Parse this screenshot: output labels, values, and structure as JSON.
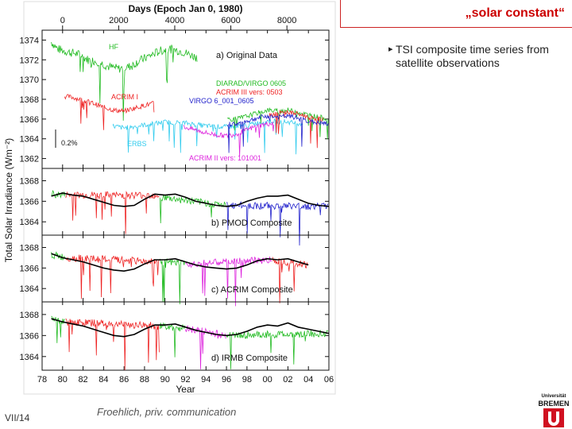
{
  "slide": {
    "title": "„solar constant“",
    "bullet": "TSI composite time series from satellite observations",
    "bullet_icon": "bullet-mark-icon",
    "slide_number": "VII/14",
    "credit": "Froehlich, priv. communication",
    "logo_top_text": "Universität",
    "logo_bottom_text": "BREMEN",
    "logo_color": "#d01020"
  },
  "chart_data": {
    "type": "line",
    "xlabel": "Year",
    "ylabel": "Total Solar Irradiance (Wm⁻²)",
    "top_axis_label": "Days (Epoch Jan 0, 1980)",
    "top_ticks": [
      "0",
      "2000",
      "4000",
      "6000",
      "8000"
    ],
    "top_tick_values": [
      0,
      2000,
      4000,
      6000,
      8000
    ],
    "xlim": [
      1978,
      2006
    ],
    "x_ticks": [
      "78",
      "80",
      "82",
      "84",
      "86",
      "88",
      "90",
      "92",
      "94",
      "96",
      "98",
      "00",
      "02",
      "04",
      "06"
    ],
    "x_tick_values": [
      1978,
      1980,
      1982,
      1984,
      1986,
      1988,
      1990,
      1992,
      1994,
      1996,
      1998,
      2000,
      2002,
      2004,
      2006
    ],
    "panels": [
      {
        "label": "a) Original Data",
        "ylim": [
          1361,
          1375
        ],
        "y_ticks": [
          "1374",
          "1372",
          "1370",
          "1368",
          "1366",
          "1364",
          "1362"
        ],
        "y_tick_values": [
          1374,
          1372,
          1370,
          1368,
          1366,
          1364,
          1362
        ],
        "note": "0.2%",
        "series": [
          {
            "name": "HF",
            "color": "#22bb22",
            "x": [
              1978.9,
              1979.5,
              1980.5,
              1981.5,
              1982.5,
              1983.5,
              1984.5,
              1985.5,
              1986.5,
              1987.5,
              1988.5,
              1989.5,
              1990.5,
              1991.5,
              1992.5,
              1993.2
            ],
            "y": [
              1373.8,
              1373.1,
              1372.8,
              1372.6,
              1372.0,
              1371.8,
              1371.3,
              1371.1,
              1371.3,
              1371.9,
              1372.4,
              1372.9,
              1373.1,
              1372.9,
              1372.5,
              1372.2
            ]
          },
          {
            "name": "ACRIM I",
            "color": "#ee2222",
            "x": [
              1980.2,
              1981.0,
              1982.0,
              1983.0,
              1984.0,
              1985.0,
              1986.0,
              1987.0,
              1988.0,
              1989.0
            ],
            "y": [
              1368.3,
              1368.2,
              1367.9,
              1367.6,
              1367.2,
              1366.9,
              1366.8,
              1367.1,
              1367.4,
              1367.6
            ]
          },
          {
            "name": "ERBS",
            "color": "#33ccee",
            "x": [
              1984.9,
              1986.0,
              1988.0,
              1990.0,
              1992.0,
              1994.0,
              1996.0,
              1998.0,
              2000.0,
              2002.0,
              2003.5
            ],
            "y": [
              1365.3,
              1365.1,
              1365.4,
              1365.7,
              1365.6,
              1365.3,
              1365.2,
              1365.4,
              1365.8,
              1365.7,
              1365.5
            ]
          },
          {
            "name": "ACRIM II vers: 101001",
            "color": "#dd22dd",
            "x": [
              1991.8,
              1993.0,
              1994.0,
              1995.0,
              1996.0,
              1997.0,
              1998.0,
              1999.0,
              2000.0,
              2000.7
            ],
            "y": [
              1365.2,
              1364.9,
              1364.6,
              1364.4,
              1364.3,
              1364.5,
              1364.9,
              1365.3,
              1365.5,
              1365.6
            ]
          },
          {
            "name": "DIARAD/VIRGO 0605",
            "color": "#22bb22",
            "x": [
              1996.1,
              1997.0,
              1998.0,
              1999.0,
              2000.0,
              2001.0,
              2002.0,
              2003.0,
              2004.0,
              2005.0,
              2006.0
            ],
            "y": [
              1366.0,
              1366.0,
              1366.3,
              1366.6,
              1366.9,
              1366.8,
              1366.9,
              1366.7,
              1366.4,
              1366.2,
              1366.0
            ]
          },
          {
            "name": "ACRIM III vers: 0503",
            "color": "#ee2222",
            "x": [
              2000.1,
              2001.0,
              2002.0,
              2003.0,
              2004.0,
              2005.0,
              2005.5
            ],
            "y": [
              1366.4,
              1366.6,
              1366.7,
              1366.5,
              1366.2,
              1366.0,
              1365.9
            ]
          },
          {
            "name": "VIRGO 6_001_0605",
            "color": "#2222cc",
            "x": [
              1996.1,
              1997.0,
              1998.0,
              1999.0,
              2000.0,
              2001.0,
              2002.0,
              2003.0,
              2004.0,
              2005.0,
              2006.0
            ],
            "y": [
              1365.5,
              1365.5,
              1365.8,
              1366.1,
              1366.3,
              1366.2,
              1366.3,
              1366.1,
              1365.8,
              1365.6,
              1365.5
            ]
          }
        ]
      },
      {
        "label": "b) PMOD Composite",
        "ylim": [
          1362.7,
          1369.2
        ],
        "y_ticks": [
          "1368",
          "1366",
          "1364"
        ],
        "y_tick_values": [
          1368,
          1366,
          1364
        ],
        "segments": [
          {
            "color": "#22bb22",
            "x": [
              1978.9,
              1980.3
            ],
            "y": [
              1366.7,
              1366.6
            ]
          },
          {
            "color": "#ee2222",
            "x": [
              1980.3,
              1989.5
            ],
            "y": [
              1366.6,
              1366.6
            ]
          },
          {
            "color": "#22bb22",
            "x": [
              1989.5,
              1996.0
            ],
            "y": [
              1366.4,
              1365.6
            ]
          },
          {
            "color": "#2222cc",
            "x": [
              1996.0,
              2006.0
            ],
            "y": [
              1365.6,
              1365.5
            ]
          }
        ],
        "smoothed": {
          "name": "smoothed",
          "color": "#000000",
          "x": [
            1978.9,
            1980.0,
            1981.0,
            1982.0,
            1983.0,
            1984.0,
            1985.0,
            1986.0,
            1987.0,
            1988.0,
            1989.0,
            1990.0,
            1991.0,
            1992.0,
            1993.0,
            1994.0,
            1995.0,
            1996.0,
            1997.0,
            1998.0,
            1999.0,
            2000.0,
            2001.0,
            2002.0,
            2003.0,
            2004.0,
            2005.0,
            2006.0
          ],
          "y": [
            1366.5,
            1366.8,
            1366.6,
            1366.5,
            1366.2,
            1365.9,
            1365.6,
            1365.5,
            1365.6,
            1366.2,
            1366.7,
            1366.6,
            1366.7,
            1366.4,
            1366.0,
            1365.8,
            1365.6,
            1365.5,
            1365.6,
            1366.0,
            1366.3,
            1366.5,
            1366.5,
            1366.6,
            1366.2,
            1365.8,
            1365.6,
            1365.5
          ]
        }
      },
      {
        "label": "c) ACRIM Composite",
        "ylim": [
          1362.7,
          1369.2
        ],
        "y_ticks": [
          "1368",
          "1366",
          "1364"
        ],
        "y_tick_values": [
          1368,
          1366,
          1364
        ],
        "segments": [
          {
            "color": "#22bb22",
            "x": [
              1978.9,
              1980.3
            ],
            "y": [
              1367.3,
              1367.0
            ]
          },
          {
            "color": "#ee2222",
            "x": [
              1980.3,
              1989.5
            ],
            "y": [
              1367.0,
              1366.6
            ]
          },
          {
            "color": "#22bb22",
            "x": [
              1989.5,
              1992.0
            ],
            "y": [
              1366.6,
              1366.4
            ]
          },
          {
            "color": "#dd22dd",
            "x": [
              1992.0,
              2000.5
            ],
            "y": [
              1366.4,
              1366.8
            ]
          },
          {
            "color": "#ee2222",
            "x": [
              2000.5,
              2004.0
            ],
            "y": [
              1366.8,
              1366.3
            ]
          }
        ],
        "smoothed": {
          "name": "smoothed",
          "color": "#000000",
          "x": [
            1978.9,
            1980.0,
            1981.0,
            1982.0,
            1983.0,
            1984.0,
            1985.0,
            1986.0,
            1987.0,
            1988.0,
            1989.0,
            1990.0,
            1991.0,
            1992.0,
            1993.0,
            1994.0,
            1995.0,
            1996.0,
            1997.0,
            1998.0,
            1999.0,
            2000.0,
            2001.0,
            2002.0,
            2003.0,
            2004.0
          ],
          "y": [
            1367.4,
            1367.0,
            1366.8,
            1366.6,
            1366.3,
            1366.0,
            1365.8,
            1365.7,
            1365.9,
            1366.4,
            1366.8,
            1366.8,
            1366.9,
            1366.6,
            1366.3,
            1366.1,
            1366.0,
            1365.9,
            1366.0,
            1366.3,
            1366.7,
            1366.9,
            1366.8,
            1366.9,
            1366.6,
            1366.3
          ]
        }
      },
      {
        "label": "d) IRMB Composite",
        "ylim": [
          1362.7,
          1369.2
        ],
        "y_ticks": [
          "1368",
          "1366",
          "1364"
        ],
        "y_tick_values": [
          1368,
          1366,
          1364
        ],
        "segments": [
          {
            "color": "#22bb22",
            "x": [
              1978.9,
              1980.3
            ],
            "y": [
              1367.6,
              1367.3
            ]
          },
          {
            "color": "#ee2222",
            "x": [
              1980.3,
              1989.5
            ],
            "y": [
              1367.3,
              1366.9
            ]
          },
          {
            "color": "#22bb22",
            "x": [
              1989.5,
              1992.0
            ],
            "y": [
              1366.9,
              1366.7
            ]
          },
          {
            "color": "#dd22dd",
            "x": [
              1992.0,
              1996.0
            ],
            "y": [
              1366.7,
              1366.0
            ]
          },
          {
            "color": "#22bb22",
            "x": [
              1996.0,
              2006.0
            ],
            "y": [
              1366.0,
              1366.2
            ]
          }
        ],
        "smoothed": {
          "name": "smoothed",
          "color": "#000000",
          "x": [
            1978.9,
            1980.0,
            1981.0,
            1982.0,
            1983.0,
            1984.0,
            1985.0,
            1986.0,
            1987.0,
            1988.0,
            1989.0,
            1990.0,
            1991.0,
            1992.0,
            1993.0,
            1994.0,
            1995.0,
            1996.0,
            1997.0,
            1998.0,
            1999.0,
            2000.0,
            2001.0,
            2002.0,
            2003.0,
            2004.0,
            2005.0,
            2006.0
          ],
          "y": [
            1367.6,
            1367.3,
            1367.1,
            1366.9,
            1366.6,
            1366.3,
            1366.0,
            1365.9,
            1366.1,
            1366.6,
            1367.0,
            1367.0,
            1367.1,
            1366.8,
            1366.5,
            1366.3,
            1366.1,
            1366.0,
            1366.1,
            1366.4,
            1366.8,
            1367.0,
            1366.9,
            1367.2,
            1366.8,
            1366.6,
            1366.4,
            1366.2
          ]
        }
      }
    ]
  }
}
